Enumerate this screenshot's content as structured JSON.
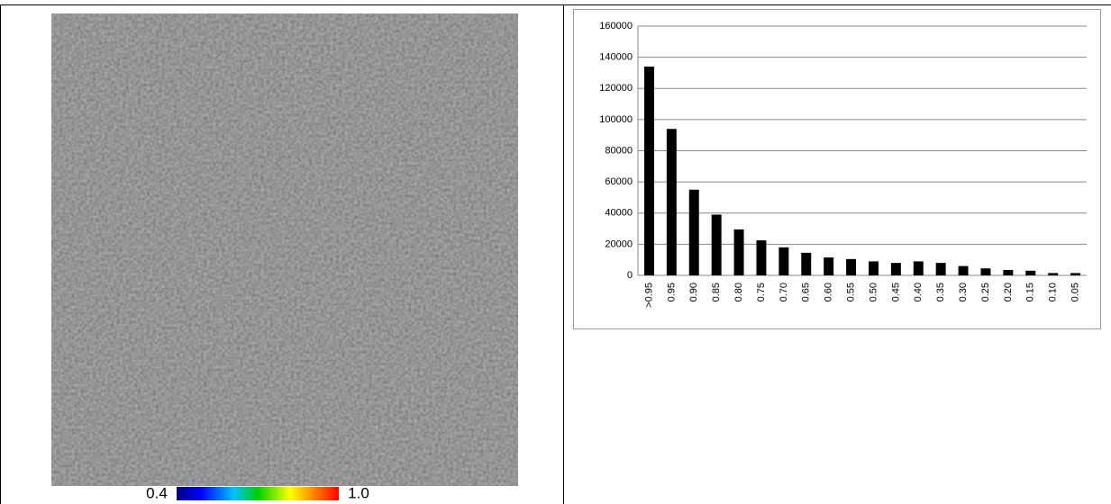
{
  "colorbar": {
    "ticks": [
      0.4,
      {
        "value": 1,
        "label": "1.0"
      }
    ]
  },
  "chart_data": {
    "type": "bar",
    "categories": [
      ">0.95",
      "0.95",
      "0.90",
      "0.85",
      "0.80",
      "0.75",
      "0.70",
      "0.65",
      "0.60",
      "0.55",
      "0.50",
      "0.45",
      "0.40",
      "0.35",
      "0.30",
      "0.25",
      "0.20",
      "0.15",
      "0.10",
      "0.05"
    ],
    "values": [
      134000,
      94000,
      55000,
      39000,
      29500,
      22500,
      18000,
      14500,
      11500,
      10500,
      9000,
      8000,
      9000,
      8000,
      6000,
      4500,
      3500,
      3000,
      1500,
      1500
    ],
    "color": "#000000",
    "ylim": [
      0,
      160000
    ],
    "yticks": [
      0,
      20000,
      40000,
      60000,
      80000,
      100000,
      120000,
      140000,
      160000
    ],
    "grid": true
  }
}
